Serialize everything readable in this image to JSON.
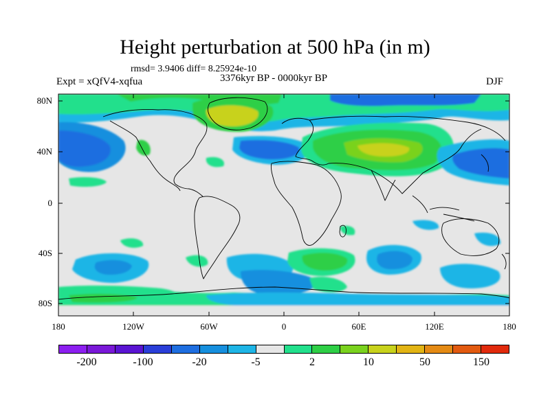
{
  "header": {
    "title": "Height perturbation at 500 hPa (in m)",
    "stats": "rmsd= 3.9406 diff= 8.25924e-10",
    "experiment": "Expt = xQfV4-xqfua",
    "period": "3376kyr BP - 0000kyr BP",
    "season": "DJF"
  },
  "axes": {
    "y_ticks": [
      "80N",
      "40N",
      "0",
      "40S",
      "80S"
    ],
    "x_ticks": [
      "180",
      "120W",
      "60W",
      "0",
      "60E",
      "120E",
      "180"
    ]
  },
  "colorbar": {
    "colors": [
      "#8c1ff0",
      "#7a18d8",
      "#5a14d2",
      "#2a3ed8",
      "#1e6ee0",
      "#168fde",
      "#1eb5e6",
      "#e6e6e6",
      "#22e08c",
      "#2ecf46",
      "#7ad21e",
      "#c8d21c",
      "#e2b414",
      "#e48a14",
      "#e25a10",
      "#e12a0c"
    ],
    "labels": [
      "-200",
      "-100",
      "-20",
      "-5",
      "2",
      "10",
      "50",
      "150"
    ]
  },
  "legend": {
    "neutral_color": "#e6e6e6",
    "coastline_color": "#000000"
  }
}
